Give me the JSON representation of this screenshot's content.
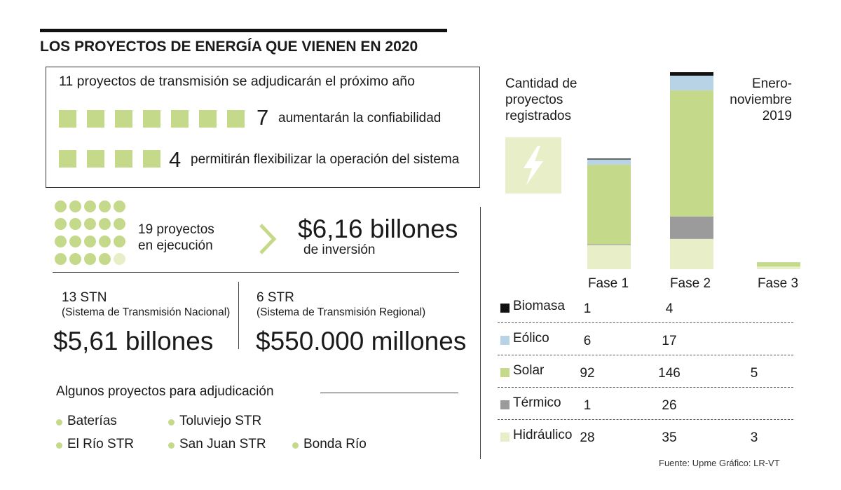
{
  "header": {
    "title": "LOS PROYECTOS DE ENERGÍA QUE VIENEN EN 2020"
  },
  "transmission": {
    "title": "11 proyectos de transmisión se adjudicarán el próximo año",
    "row1": {
      "count": 7,
      "number": "7",
      "text": "aumentarán la confiabilidad"
    },
    "row2": {
      "count": 4,
      "number": "4",
      "text": "permitirán flexibilizar la operación del sistema"
    }
  },
  "execution": {
    "line1": "19 proyectos",
    "line2": "en ejecución",
    "dots_dark": 19,
    "dots_light": 1,
    "amount": "$6,16 billones",
    "amount_sub": "de inversión"
  },
  "stn": {
    "count": "13 STN",
    "name": "(Sistema de Transmisión Nacional)",
    "amount": "$5,61 billones"
  },
  "str": {
    "count": "6 STR",
    "name": "(Sistema de Transmisión Regional)",
    "amount": "$550.000 millones"
  },
  "adjudication": {
    "title": "Algunos proyectos para adjudicación",
    "items": [
      "Baterías",
      "Toluviejo STR",
      "El Río STR",
      "San Juan STR",
      "Bonda Río"
    ]
  },
  "icons": {
    "lightning": "lightning-bolt-icon"
  },
  "colors": {
    "green": "#c5d98a",
    "light_green": "#e8efc8",
    "blue": "#b8d2e6",
    "gray": "#9b9b9b",
    "black": "#111111"
  },
  "chart_data": {
    "type": "bar",
    "stacked": true,
    "title": "Cantidad de proyectos registrados",
    "period": "Enero-noviembre 2019",
    "categories": [
      "Fase 1",
      "Fase 2",
      "Fase 3"
    ],
    "series": [
      {
        "name": "Biomasa",
        "color": "#111111",
        "values": [
          1,
          4,
          null
        ],
        "labels": [
          "1",
          "4",
          ""
        ]
      },
      {
        "name": "Eólico",
        "color": "#b8d2e6",
        "values": [
          6,
          17,
          null
        ],
        "labels": [
          "6",
          "17",
          ""
        ]
      },
      {
        "name": "Solar",
        "color": "#c5d98a",
        "values": [
          92,
          146,
          5
        ],
        "labels": [
          "92",
          "146",
          "5"
        ]
      },
      {
        "name": "Térmico",
        "color": "#9b9b9b",
        "values": [
          1,
          26,
          null
        ],
        "labels": [
          "1",
          "26",
          ""
        ]
      },
      {
        "name": "Hidráulico",
        "color": "#e8efc8",
        "values": [
          28,
          35,
          3
        ],
        "labels": [
          "28",
          "35",
          "3"
        ]
      }
    ],
    "stack_order_bottom_to_top": [
      "Hidráulico",
      "Térmico",
      "Solar",
      "Eólico",
      "Biomasa"
    ],
    "ylim": [
      0,
      228
    ]
  },
  "footer": {
    "source": "Fuente: Upme  Gráfico: LR-VT"
  }
}
